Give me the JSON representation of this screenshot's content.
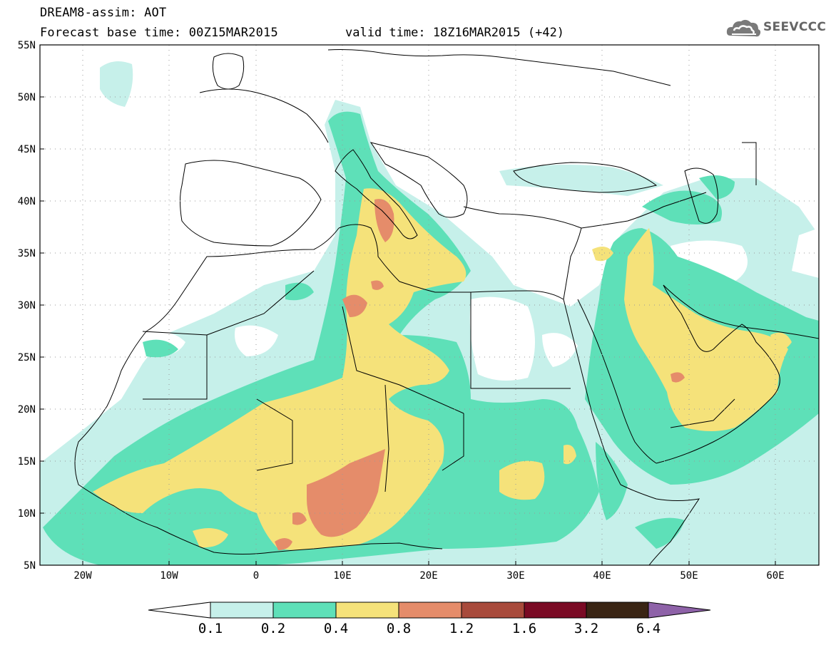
{
  "header": {
    "title": "DREAM8-assim: AOT",
    "base_time": "Forecast base time: 00Z15MAR2015",
    "valid_time": "valid time: 18Z16MAR2015 (+42)",
    "logo_text": "SEEVCCC",
    "logo_icon": "cloud-icon"
  },
  "map": {
    "lon_range": [
      -25,
      65
    ],
    "lat_range": [
      5,
      55
    ],
    "lat_labels": [
      "55N",
      "50N",
      "45N",
      "40N",
      "35N",
      "30N",
      "25N",
      "20N",
      "15N",
      "10N",
      "5N"
    ],
    "lon_labels": [
      "20W",
      "10W",
      "0",
      "10E",
      "20E",
      "30E",
      "40E",
      "50E",
      "60E"
    ],
    "grid": "dotted"
  },
  "legend": {
    "labels": [
      "0.1",
      "0.2",
      "0.4",
      "0.8",
      "1.2",
      "1.6",
      "3.2",
      "6.4"
    ],
    "colors": {
      "below": "#ffffff",
      "c1": "#c6f0ea",
      "c2": "#5ee0b8",
      "c3": "#f5e27a",
      "c4": "#e58c6a",
      "c5": "#a84a3b",
      "c6": "#7a0a24",
      "c7": "#3a2514",
      "above": "#8e62a8"
    }
  }
}
